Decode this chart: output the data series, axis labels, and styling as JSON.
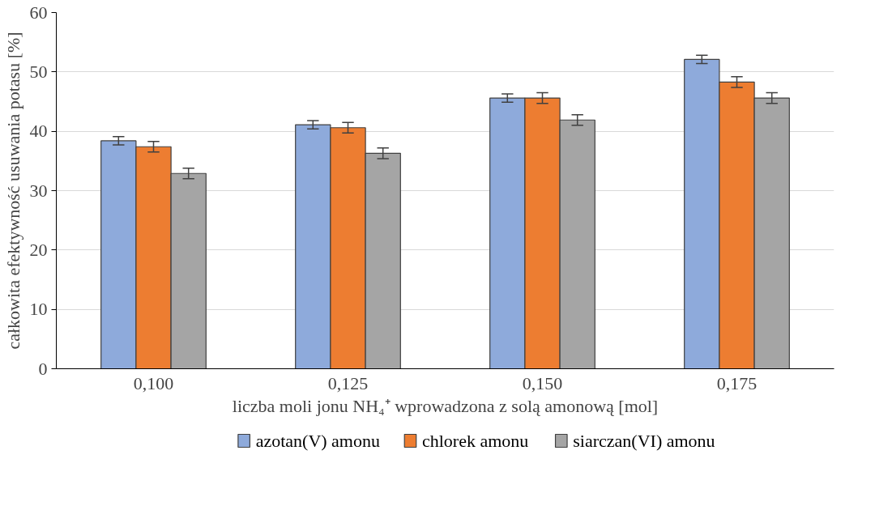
{
  "chart_data": {
    "type": "bar",
    "ylabel": "całkowita efektywność usuwania potasu [%]",
    "xlabel": "liczba moli jonu NH₄⁺ wprowadzona z solą amonową [mol]",
    "categories": [
      "0,100",
      "0,125",
      "0,150",
      "0,175"
    ],
    "series": [
      {
        "name": "azotan(V) amonu",
        "color": "#8eaadb",
        "values": [
          38.4,
          41.1,
          45.6,
          52.1
        ],
        "errors": [
          0.7,
          0.7,
          0.7,
          0.7
        ]
      },
      {
        "name": "chlorek amonu",
        "color": "#ed7d31",
        "values": [
          37.4,
          40.6,
          45.6,
          48.3
        ],
        "errors": [
          0.9,
          0.9,
          0.9,
          0.9
        ]
      },
      {
        "name": "siarczan(VI) amonu",
        "color": "#a5a5a5",
        "values": [
          32.9,
          36.3,
          41.9,
          45.6
        ],
        "errors": [
          0.9,
          0.9,
          0.9,
          0.9
        ]
      }
    ],
    "ylim": [
      0,
      60
    ],
    "yticks": [
      0,
      10,
      20,
      30,
      40,
      50,
      60
    ],
    "grid": "y",
    "legend": "bottom"
  }
}
